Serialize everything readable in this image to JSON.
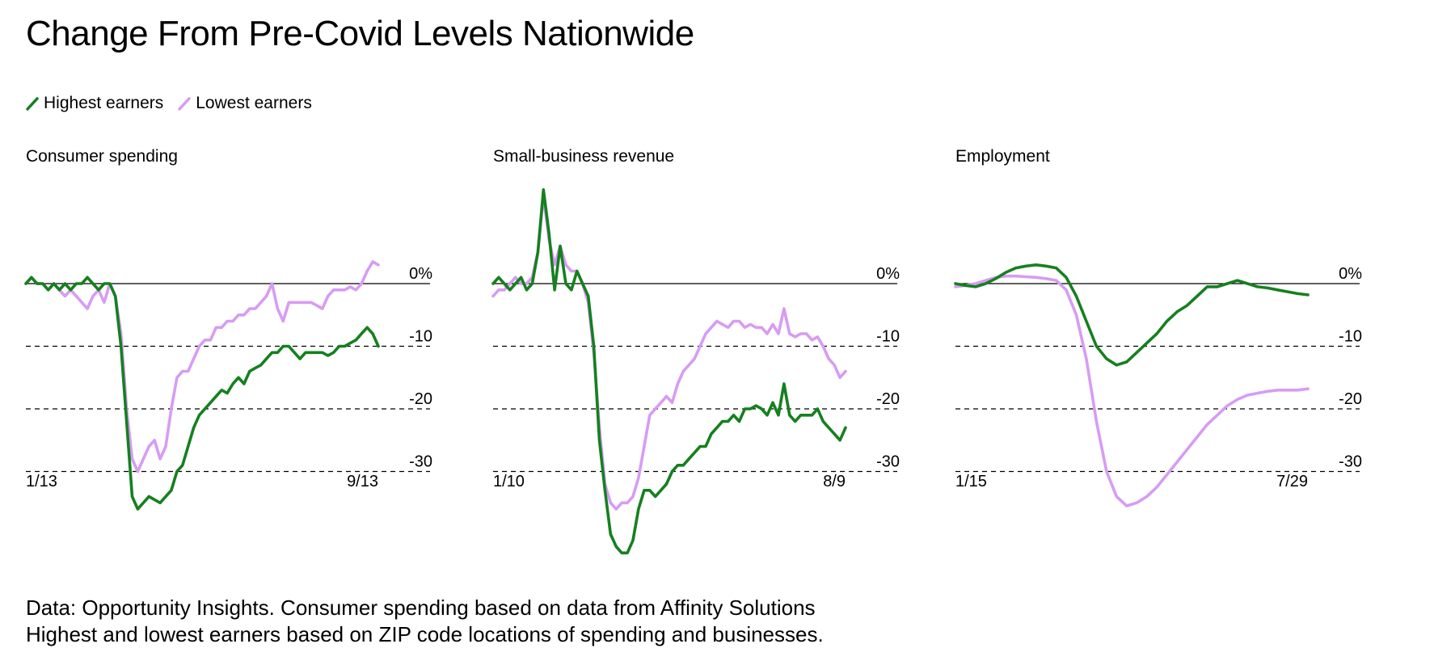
{
  "title": "Change From Pre-Covid Levels Nationwide",
  "legend": {
    "high_label": "Highest earners",
    "low_label": "Lowest earners"
  },
  "colors": {
    "high": "#15801f",
    "low": "#d79cf3"
  },
  "footnote": {
    "line1": "Data: Opportunity Insights. Consumer spending based on data from Affinity Solutions",
    "line2": "Highest and lowest earners based on ZIP code locations of spending and businesses."
  },
  "chart_data": [
    {
      "type": "line",
      "title": "Consumer spending",
      "x_labels": [
        "1/13",
        "9/13"
      ],
      "y_ticks": [
        "0%",
        "-10",
        "-20",
        "-30"
      ],
      "ylim": [
        -37,
        17
      ],
      "grid": "dashed at -10, -20, -30; solid at 0",
      "series": [
        {
          "name": "Highest earners",
          "values": [
            0,
            1,
            0,
            0,
            -1,
            0,
            -1,
            0,
            -1,
            0,
            0,
            1,
            0,
            -1,
            0,
            0,
            -2,
            -10,
            -22,
            -34,
            -36,
            -35,
            -34,
            -34.5,
            -35,
            -34,
            -33,
            -30,
            -29,
            -26,
            -23,
            -21,
            -20,
            -19,
            -18,
            -17,
            -17.5,
            -16,
            -15,
            -16,
            -14,
            -13.5,
            -13,
            -12,
            -11,
            -11,
            -10,
            -10,
            -11,
            -12,
            -11,
            -11,
            -11,
            -11,
            -11.5,
            -11,
            -10,
            -10,
            -9.5,
            -9,
            -8,
            -7,
            -8,
            -10
          ]
        },
        {
          "name": "Lowest earners",
          "values": [
            0,
            1,
            0,
            0,
            -1,
            0,
            -1,
            -2,
            -1,
            -2,
            -3,
            -4,
            -2,
            -1,
            -3,
            0,
            -2,
            -8,
            -20,
            -28,
            -30,
            -28,
            -26,
            -25,
            -28,
            -26,
            -20,
            -15,
            -14,
            -14,
            -12,
            -10,
            -9,
            -9,
            -7,
            -7,
            -6,
            -6,
            -5,
            -5,
            -4,
            -4,
            -3,
            -2,
            0,
            -4,
            -6,
            -3,
            -3,
            -3,
            -3,
            -3,
            -3.5,
            -4,
            -2,
            -1,
            -1,
            -1,
            -0.5,
            -1,
            0,
            2,
            3.5,
            3
          ]
        }
      ]
    },
    {
      "type": "line",
      "title": "Small-business revenue",
      "x_labels": [
        "1/10",
        "8/9"
      ],
      "y_ticks": [
        "0%",
        "-10",
        "-20",
        "-30"
      ],
      "ylim": [
        -37,
        17
      ],
      "grid": "dashed at -10, -20, -30; solid at 0",
      "series": [
        {
          "name": "Highest earners",
          "values": [
            0,
            1,
            0,
            -1,
            0,
            1,
            -1,
            0,
            5,
            15,
            8,
            -1,
            6,
            0,
            -1,
            2,
            0,
            -2,
            -10,
            -25,
            -33,
            -40,
            -42,
            -43,
            -43,
            -41,
            -36,
            -33,
            -33,
            -34,
            -33,
            -32,
            -30,
            -29,
            -29,
            -28,
            -27,
            -26,
            -26,
            -24,
            -23,
            -22,
            -22,
            -21,
            -22,
            -20,
            -20,
            -19.5,
            -20,
            -21,
            -19,
            -21,
            -16,
            -21,
            -22,
            -21,
            -21,
            -21,
            -20,
            -22,
            -23,
            -24,
            -25,
            -23
          ]
        },
        {
          "name": "Lowest earners",
          "values": [
            -2,
            -1,
            -1,
            0,
            1,
            0,
            0,
            1,
            5,
            14,
            7,
            3,
            6,
            3,
            2,
            2,
            0,
            -3,
            -11,
            -23,
            -32,
            -35,
            -36,
            -35,
            -35,
            -34,
            -31,
            -26,
            -21,
            -20,
            -19,
            -18,
            -19,
            -16,
            -14,
            -13,
            -12,
            -10,
            -8,
            -7,
            -6,
            -6.5,
            -7,
            -6,
            -6,
            -7,
            -6.5,
            -7,
            -7,
            -8,
            -6.5,
            -8,
            -4,
            -8,
            -8.5,
            -8,
            -8,
            -9,
            -8.5,
            -10,
            -12,
            -13,
            -15,
            -14
          ]
        }
      ]
    },
    {
      "type": "line",
      "title": "Employment",
      "x_labels": [
        "1/15",
        "7/29"
      ],
      "y_ticks": [
        "0%",
        "-10",
        "-20",
        "-30"
      ],
      "ylim": [
        -37,
        17
      ],
      "grid": "dashed at -10, -20, -30; solid at 0",
      "series": [
        {
          "name": "Highest earners",
          "values": [
            0,
            -0.3,
            -0.5,
            0,
            0.8,
            1.8,
            2.5,
            2.8,
            3,
            2.8,
            2.5,
            1,
            -2,
            -6,
            -10,
            -12,
            -13,
            -12.5,
            -11,
            -9.5,
            -8,
            -6,
            -4.5,
            -3.5,
            -2,
            -0.5,
            -0.5,
            0,
            0.5,
            0,
            -0.5,
            -0.7,
            -1,
            -1.3,
            -1.6,
            -1.8
          ]
        },
        {
          "name": "Lowest earners",
          "values": [
            -0.5,
            -0.3,
            0,
            0.5,
            1,
            1.2,
            1.2,
            1.1,
            1,
            0.8,
            0.5,
            -1,
            -5,
            -12,
            -22,
            -30,
            -34,
            -35.5,
            -35,
            -34,
            -32.5,
            -30.5,
            -28.5,
            -26.5,
            -24.5,
            -22.5,
            -21,
            -19.5,
            -18.5,
            -17.8,
            -17.5,
            -17.2,
            -17,
            -17,
            -17,
            -16.8
          ]
        }
      ]
    }
  ]
}
